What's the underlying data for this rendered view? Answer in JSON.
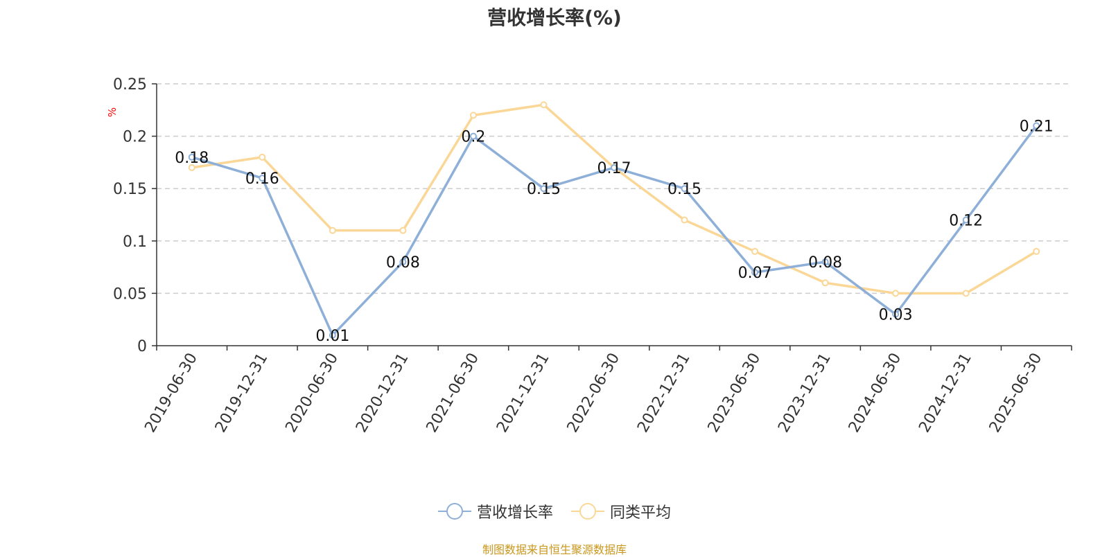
{
  "title": "营收增长率(%)",
  "source_note": "制图数据来自恒生聚源数据库",
  "chart_data": {
    "type": "line",
    "title": "营收增长率(%)",
    "ylabel": "%",
    "xlabel": "",
    "categories": [
      "2019-06-30",
      "2019-12-31",
      "2020-06-30",
      "2020-12-31",
      "2021-06-30",
      "2021-12-31",
      "2022-06-30",
      "2022-12-31",
      "2023-06-30",
      "2023-12-31",
      "2024-06-30",
      "2024-12-31",
      "2025-06-30"
    ],
    "ylim": [
      0,
      0.25
    ],
    "yticks": [
      0,
      0.05,
      0.1,
      0.15,
      0.2,
      0.25
    ],
    "ytick_labels": [
      "0",
      "0.05",
      "0.1",
      "0.15",
      "0.2",
      "0.25"
    ],
    "grid": true,
    "legend_position": "bottom",
    "series": [
      {
        "name": "营收增长率",
        "color": "#8eb0d8",
        "values": [
          0.18,
          0.16,
          0.01,
          0.08,
          0.2,
          0.15,
          0.17,
          0.15,
          0.07,
          0.08,
          0.03,
          0.12,
          0.21
        ],
        "labels": [
          "0.18",
          "0.16",
          "0.01",
          "0.08",
          "0.2",
          "0.15",
          "0.17",
          "0.15",
          "0.07",
          "0.08",
          "0.03",
          "0.12",
          "0.21"
        ],
        "show_labels": true
      },
      {
        "name": "同类平均",
        "color": "#fad797",
        "values": [
          0.17,
          0.18,
          0.11,
          0.11,
          0.22,
          0.23,
          0.17,
          0.12,
          0.09,
          0.06,
          0.05,
          0.05,
          0.09
        ],
        "show_labels": false
      }
    ]
  }
}
